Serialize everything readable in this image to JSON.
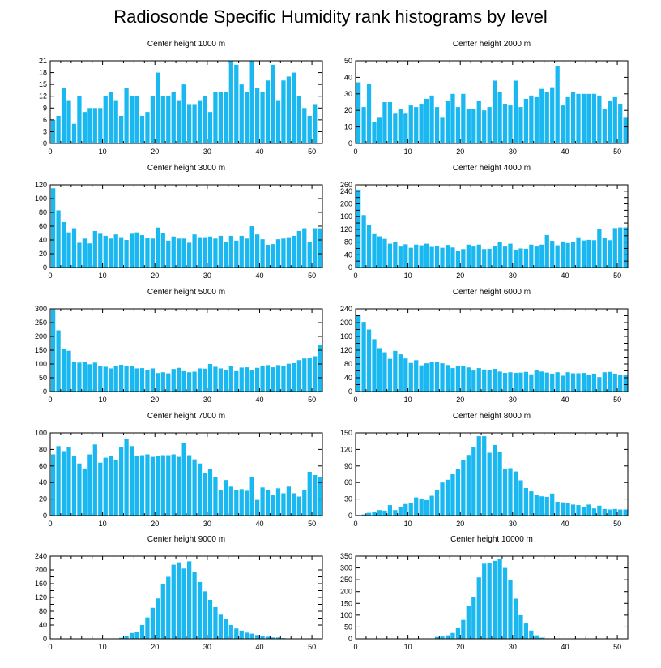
{
  "title": "Radiosonde Specific Humidity rank histograms by level",
  "colors": {
    "bar": "#1ab8f0",
    "bar_edge": "#ffffff",
    "axis": "#000000"
  },
  "chart_data": [
    {
      "type": "bar",
      "title": "Center height 1000 m",
      "xlim": [
        0,
        52
      ],
      "ylim": [
        0,
        21
      ],
      "xticks": [
        0,
        10,
        20,
        30,
        40,
        50
      ],
      "yticks": [
        0,
        3,
        6,
        9,
        12,
        15,
        18,
        21
      ],
      "x": [
        0,
        1,
        2,
        3,
        4,
        5,
        6,
        7,
        8,
        9,
        10,
        11,
        12,
        13,
        14,
        15,
        16,
        17,
        18,
        19,
        20,
        21,
        22,
        23,
        24,
        25,
        26,
        27,
        28,
        29,
        30,
        31,
        32,
        33,
        34,
        35,
        36,
        37,
        38,
        39,
        40,
        41,
        42,
        43,
        44,
        45,
        46,
        47,
        48,
        49,
        50,
        51
      ],
      "values": [
        6,
        7,
        14,
        11,
        5,
        12,
        8,
        9,
        9,
        9,
        12,
        13,
        11,
        7,
        14,
        12,
        12,
        7,
        8,
        12,
        18,
        12,
        12,
        13,
        11,
        15,
        10,
        10,
        11,
        12,
        8,
        13,
        13,
        13,
        21,
        20,
        15,
        13,
        21,
        14,
        13,
        16,
        20,
        11,
        16,
        17,
        18,
        12,
        9,
        7,
        10,
        0
      ]
    },
    {
      "type": "bar",
      "title": "Center height 2000 m",
      "xlim": [
        0,
        52
      ],
      "ylim": [
        0,
        50
      ],
      "xticks": [
        0,
        10,
        20,
        30,
        40,
        50
      ],
      "yticks": [
        0,
        10,
        20,
        30,
        40,
        50
      ],
      "x": [
        0,
        1,
        2,
        3,
        4,
        5,
        6,
        7,
        8,
        9,
        10,
        11,
        12,
        13,
        14,
        15,
        16,
        17,
        18,
        19,
        20,
        21,
        22,
        23,
        24,
        25,
        26,
        27,
        28,
        29,
        30,
        31,
        32,
        33,
        34,
        35,
        36,
        37,
        38,
        39,
        40,
        41,
        42,
        43,
        44,
        45,
        46,
        47,
        48,
        49,
        50,
        51
      ],
      "values": [
        37,
        22,
        36,
        13,
        16,
        25,
        25,
        18,
        21,
        18,
        23,
        22,
        24,
        27,
        29,
        22,
        16,
        26,
        30,
        22,
        30,
        21,
        21,
        26,
        20,
        22,
        38,
        31,
        24,
        23,
        38,
        22,
        27,
        29,
        28,
        33,
        31,
        34,
        47,
        23,
        28,
        31,
        30,
        30,
        30,
        30,
        29,
        21,
        26,
        28,
        24,
        16
      ]
    },
    {
      "type": "bar",
      "title": "Center height 3000 m",
      "xlim": [
        0,
        52
      ],
      "ylim": [
        0,
        120
      ],
      "xticks": [
        0,
        10,
        20,
        30,
        40,
        50
      ],
      "yticks": [
        0,
        20,
        40,
        60,
        80,
        100,
        120
      ],
      "x": [
        0,
        1,
        2,
        3,
        4,
        5,
        6,
        7,
        8,
        9,
        10,
        11,
        12,
        13,
        14,
        15,
        16,
        17,
        18,
        19,
        20,
        21,
        22,
        23,
        24,
        25,
        26,
        27,
        28,
        29,
        30,
        31,
        32,
        33,
        34,
        35,
        36,
        37,
        38,
        39,
        40,
        41,
        42,
        43,
        44,
        45,
        46,
        47,
        48,
        49,
        50,
        51
      ],
      "values": [
        115,
        83,
        66,
        51,
        57,
        36,
        42,
        35,
        53,
        49,
        46,
        42,
        48,
        44,
        40,
        49,
        51,
        47,
        43,
        42,
        58,
        50,
        39,
        45,
        42,
        42,
        36,
        48,
        44,
        44,
        45,
        42,
        46,
        37,
        46,
        39,
        46,
        42,
        60,
        48,
        41,
        33,
        34,
        41,
        42,
        44,
        46,
        53,
        57,
        37,
        57,
        57
      ]
    },
    {
      "type": "bar",
      "title": "Center height 4000 m",
      "xlim": [
        0,
        52
      ],
      "ylim": [
        0,
        260
      ],
      "xticks": [
        0,
        10,
        20,
        30,
        40,
        50
      ],
      "yticks": [
        0,
        20,
        40,
        60,
        80,
        100,
        120,
        140,
        160,
        180,
        200,
        220,
        240,
        260
      ],
      "ytick_labels": [
        "0",
        "",
        "40",
        "",
        "80",
        "",
        "120",
        "",
        "160",
        "",
        "200",
        "",
        "240",
        "260"
      ],
      "x": [
        0,
        1,
        2,
        3,
        4,
        5,
        6,
        7,
        8,
        9,
        10,
        11,
        12,
        13,
        14,
        15,
        16,
        17,
        18,
        19,
        20,
        21,
        22,
        23,
        24,
        25,
        26,
        27,
        28,
        29,
        30,
        31,
        32,
        33,
        34,
        35,
        36,
        37,
        38,
        39,
        40,
        41,
        42,
        43,
        44,
        45,
        46,
        47,
        48,
        49,
        50,
        51
      ],
      "values": [
        245,
        165,
        135,
        105,
        98,
        90,
        75,
        79,
        66,
        73,
        62,
        72,
        70,
        75,
        65,
        68,
        62,
        71,
        63,
        51,
        58,
        72,
        66,
        72,
        58,
        59,
        67,
        81,
        66,
        75,
        56,
        60,
        59,
        72,
        66,
        72,
        102,
        84,
        70,
        82,
        77,
        80,
        95,
        85,
        87,
        86,
        120,
        92,
        86,
        124,
        126,
        126
      ]
    },
    {
      "type": "bar",
      "title": "Center height 5000 m",
      "xlim": [
        0,
        52
      ],
      "ylim": [
        0,
        300
      ],
      "xticks": [
        0,
        10,
        20,
        30,
        40,
        50
      ],
      "yticks": [
        0,
        50,
        100,
        150,
        200,
        250,
        300
      ],
      "x": [
        0,
        1,
        2,
        3,
        4,
        5,
        6,
        7,
        8,
        9,
        10,
        11,
        12,
        13,
        14,
        15,
        16,
        17,
        18,
        19,
        20,
        21,
        22,
        23,
        24,
        25,
        26,
        27,
        28,
        29,
        30,
        31,
        32,
        33,
        34,
        35,
        36,
        37,
        38,
        39,
        40,
        41,
        42,
        43,
        44,
        45,
        46,
        47,
        48,
        49,
        50,
        51
      ],
      "values": [
        298,
        222,
        155,
        148,
        108,
        105,
        107,
        99,
        105,
        92,
        90,
        84,
        93,
        97,
        94,
        93,
        84,
        85,
        78,
        84,
        67,
        70,
        66,
        82,
        86,
        74,
        70,
        72,
        84,
        83,
        100,
        90,
        84,
        78,
        94,
        74,
        87,
        88,
        79,
        86,
        94,
        96,
        88,
        96,
        94,
        101,
        103,
        114,
        120,
        123,
        128,
        170
      ]
    },
    {
      "type": "bar",
      "title": "Center height 6000 m",
      "xlim": [
        0,
        52
      ],
      "ylim": [
        0,
        240
      ],
      "xticks": [
        0,
        10,
        20,
        30,
        40,
        50
      ],
      "yticks": [
        0,
        20,
        40,
        60,
        80,
        100,
        120,
        140,
        160,
        180,
        200,
        220,
        240
      ],
      "ytick_labels": [
        "0",
        "",
        "40",
        "",
        "80",
        "",
        "120",
        "",
        "160",
        "",
        "200",
        "",
        "240"
      ],
      "x": [
        0,
        1,
        2,
        3,
        4,
        5,
        6,
        7,
        8,
        9,
        10,
        11,
        12,
        13,
        14,
        15,
        16,
        17,
        18,
        19,
        20,
        21,
        22,
        23,
        24,
        25,
        26,
        27,
        28,
        29,
        30,
        31,
        32,
        33,
        34,
        35,
        36,
        37,
        38,
        39,
        40,
        41,
        42,
        43,
        44,
        45,
        46,
        47,
        48,
        49,
        50,
        51
      ],
      "values": [
        223,
        202,
        180,
        152,
        126,
        114,
        95,
        118,
        108,
        96,
        83,
        91,
        76,
        82,
        85,
        85,
        82,
        77,
        68,
        74,
        73,
        70,
        61,
        68,
        64,
        63,
        66,
        58,
        54,
        56,
        54,
        55,
        57,
        50,
        61,
        58,
        55,
        52,
        56,
        46,
        56,
        53,
        53,
        54,
        48,
        52,
        42,
        56,
        57,
        52,
        48,
        47
      ]
    },
    {
      "type": "bar",
      "title": "Center height 7000 m",
      "xlim": [
        0,
        52
      ],
      "ylim": [
        0,
        100
      ],
      "xticks": [
        0,
        10,
        20,
        30,
        40,
        50
      ],
      "yticks": [
        0,
        20,
        40,
        60,
        80,
        100
      ],
      "x": [
        0,
        1,
        2,
        3,
        4,
        5,
        6,
        7,
        8,
        9,
        10,
        11,
        12,
        13,
        14,
        15,
        16,
        17,
        18,
        19,
        20,
        21,
        22,
        23,
        24,
        25,
        26,
        27,
        28,
        29,
        30,
        31,
        32,
        33,
        34,
        35,
        36,
        37,
        38,
        39,
        40,
        41,
        42,
        43,
        44,
        45,
        46,
        47,
        48,
        49,
        50,
        51
      ],
      "values": [
        74,
        84,
        78,
        83,
        72,
        63,
        57,
        74,
        86,
        64,
        70,
        72,
        67,
        83,
        93,
        84,
        72,
        73,
        74,
        71,
        72,
        73,
        73,
        74,
        71,
        88,
        73,
        68,
        63,
        51,
        56,
        47,
        31,
        43,
        35,
        31,
        32,
        30,
        47,
        19,
        34,
        31,
        25,
        33,
        27,
        35,
        27,
        23,
        31,
        53,
        49,
        47
      ]
    },
    {
      "type": "bar",
      "title": "Center height 8000 m",
      "xlim": [
        0,
        52
      ],
      "ylim": [
        0,
        150
      ],
      "xticks": [
        0,
        10,
        20,
        30,
        40,
        50
      ],
      "yticks": [
        0,
        30,
        60,
        90,
        120,
        150
      ],
      "x": [
        0,
        1,
        2,
        3,
        4,
        5,
        6,
        7,
        8,
        9,
        10,
        11,
        12,
        13,
        14,
        15,
        16,
        17,
        18,
        19,
        20,
        21,
        22,
        23,
        24,
        25,
        26,
        27,
        28,
        29,
        30,
        31,
        32,
        33,
        34,
        35,
        36,
        37,
        38,
        39,
        40,
        41,
        42,
        43,
        44,
        45,
        46,
        47,
        48,
        49,
        50,
        51
      ],
      "values": [
        1,
        2,
        5,
        7,
        10,
        9,
        19,
        10,
        16,
        21,
        23,
        33,
        31,
        28,
        36,
        47,
        60,
        65,
        75,
        85,
        100,
        110,
        125,
        144,
        144,
        114,
        128,
        115,
        85,
        86,
        80,
        64,
        50,
        44,
        38,
        35,
        34,
        40,
        25,
        24,
        23,
        20,
        19,
        15,
        20,
        13,
        18,
        12,
        11,
        12,
        11,
        11
      ]
    },
    {
      "type": "bar",
      "title": "Center height 9000 m",
      "xlim": [
        0,
        52
      ],
      "ylim": [
        0,
        240
      ],
      "xticks": [
        0,
        10,
        20,
        30,
        40,
        50
      ],
      "yticks": [
        0,
        20,
        40,
        60,
        80,
        100,
        120,
        140,
        160,
        180,
        200,
        220,
        240
      ],
      "ytick_labels": [
        "0",
        "",
        "40",
        "",
        "80",
        "",
        "120",
        "",
        "160",
        "",
        "200",
        "",
        "240"
      ],
      "x": [
        0,
        1,
        2,
        3,
        4,
        5,
        6,
        7,
        8,
        9,
        10,
        11,
        12,
        13,
        14,
        15,
        16,
        17,
        18,
        19,
        20,
        21,
        22,
        23,
        24,
        25,
        26,
        27,
        28,
        29,
        30,
        31,
        32,
        33,
        34,
        35,
        36,
        37,
        38,
        39,
        40,
        41,
        42,
        43,
        44,
        45,
        46,
        47,
        48,
        49,
        50,
        51
      ],
      "values": [
        0,
        0,
        0,
        0,
        0,
        0,
        0,
        0,
        0,
        0,
        0,
        0,
        1,
        3,
        8,
        17,
        20,
        40,
        62,
        90,
        117,
        160,
        180,
        215,
        222,
        204,
        225,
        195,
        165,
        138,
        113,
        92,
        70,
        58,
        40,
        30,
        24,
        18,
        15,
        11,
        8,
        6,
        4,
        4,
        2,
        1,
        1,
        0,
        0,
        0,
        0,
        0
      ]
    },
    {
      "type": "bar",
      "title": "Center height 10000 m",
      "xlim": [
        0,
        52
      ],
      "ylim": [
        0,
        350
      ],
      "xticks": [
        0,
        10,
        20,
        30,
        40,
        50
      ],
      "yticks": [
        0,
        50,
        100,
        150,
        200,
        250,
        300,
        350
      ],
      "x": [
        0,
        1,
        2,
        3,
        4,
        5,
        6,
        7,
        8,
        9,
        10,
        11,
        12,
        13,
        14,
        15,
        16,
        17,
        18,
        19,
        20,
        21,
        22,
        23,
        24,
        25,
        26,
        27,
        28,
        29,
        30,
        31,
        32,
        33,
        34,
        35,
        36,
        37,
        38,
        39,
        40,
        41,
        42,
        43,
        44,
        45,
        46,
        47,
        48,
        49,
        50,
        51
      ],
      "values": [
        0,
        0,
        0,
        0,
        0,
        0,
        0,
        0,
        0,
        0,
        0,
        0,
        0,
        0,
        0,
        8,
        10,
        15,
        25,
        45,
        80,
        140,
        175,
        260,
        318,
        320,
        330,
        340,
        300,
        250,
        170,
        100,
        65,
        35,
        15,
        5,
        2,
        1,
        0,
        0,
        0,
        0,
        0,
        0,
        0,
        0,
        0,
        0,
        0,
        0,
        0,
        0
      ]
    }
  ]
}
